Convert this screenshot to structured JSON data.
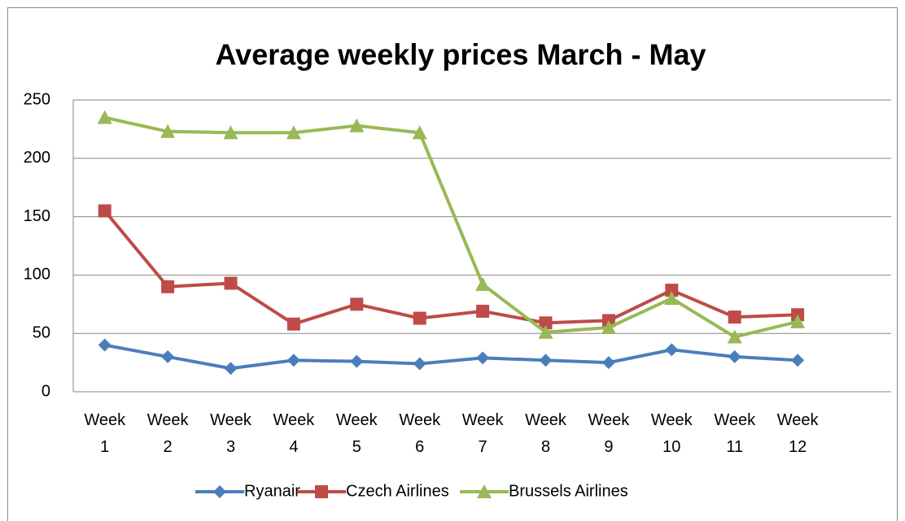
{
  "chart_data": {
    "type": "line",
    "title": "Average weekly prices March - May",
    "categories": [
      "Week 1",
      "Week 2",
      "Week 3",
      "Week 4",
      "Week 5",
      "Week 6",
      "Week 7",
      "Week 8",
      "Week 9",
      "Week 10",
      "Week 11",
      "Week 12"
    ],
    "series": [
      {
        "name": "Ryanair",
        "color": "#4a7ebb",
        "marker": "diamond",
        "values": [
          40,
          30,
          20,
          27,
          26,
          24,
          29,
          27,
          25,
          36,
          30,
          27
        ]
      },
      {
        "name": "Czech Airlines",
        "color": "#be4b48",
        "marker": "square",
        "values": [
          155,
          90,
          93,
          58,
          75,
          63,
          69,
          59,
          61,
          87,
          64,
          66
        ]
      },
      {
        "name": "Brussels Airlines",
        "color": "#98b954",
        "marker": "triangle",
        "values": [
          235,
          223,
          222,
          222,
          228,
          222,
          92,
          51,
          55,
          80,
          47,
          60
        ]
      }
    ],
    "ylim": [
      0,
      250
    ],
    "yticks": [
      0,
      50,
      100,
      150,
      200,
      250
    ],
    "grid": true,
    "legend": "bottom"
  }
}
